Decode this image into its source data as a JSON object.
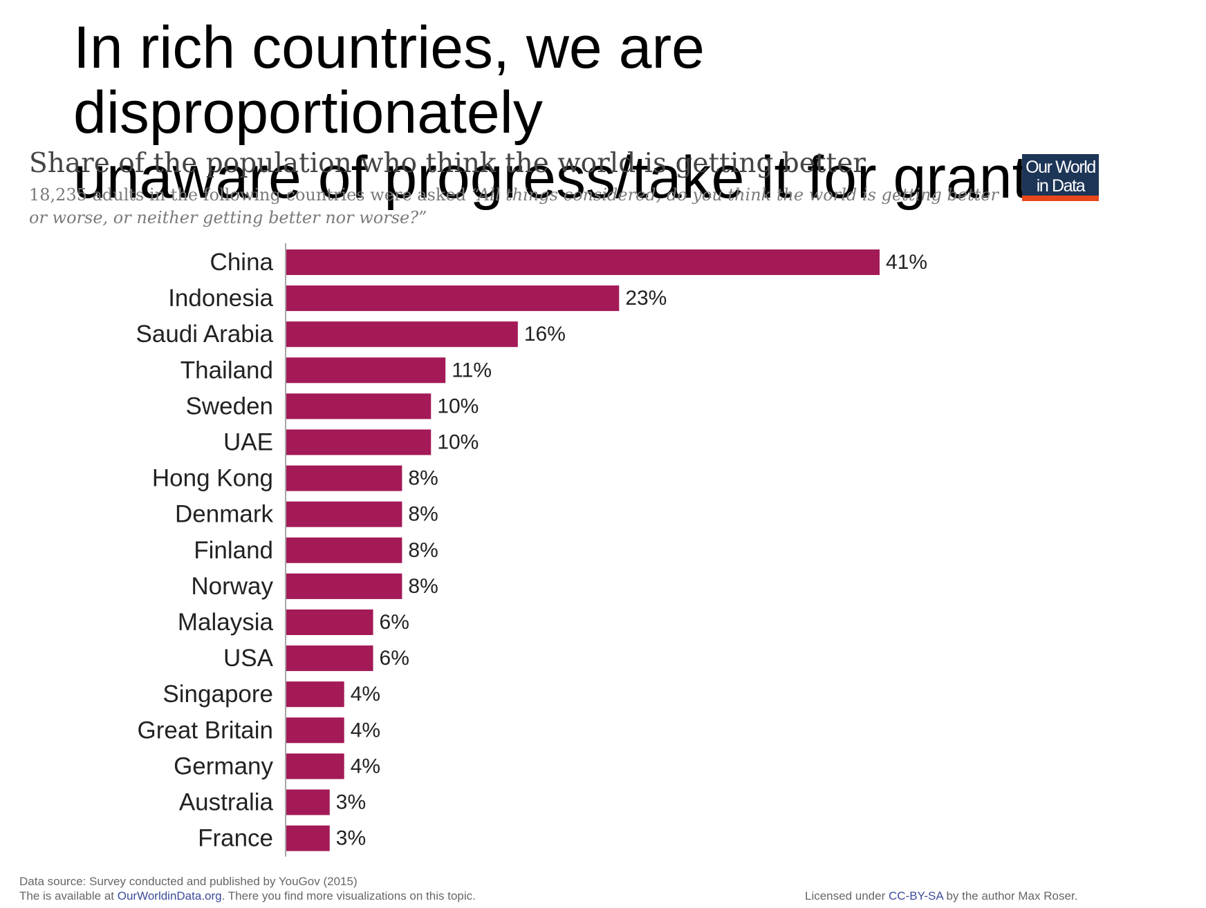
{
  "headline": {
    "line1": "In rich countries, we are disproportionately",
    "line2": "unaware of progress/take it for granted"
  },
  "logo": {
    "line1": "Our World",
    "line2": "in Data"
  },
  "colors": {
    "bar": "#a31a57",
    "logo_bg": "#1d3557",
    "logo_stripe": "#e8471c",
    "link": "#3b4a9a"
  },
  "chart_data": {
    "type": "bar",
    "orientation": "horizontal",
    "title": "Share of the population who think the world is getting better",
    "subtitle_plain": "18,235 adults in the following countries were asked ",
    "subtitle_quote": "“All things considered, do you think the world is getting better or worse, or neither getting better nor worse?”",
    "categories": [
      "China",
      "Indonesia",
      "Saudi Arabia",
      "Thailand",
      "Sweden",
      "UAE",
      "Hong Kong",
      "Denmark",
      "Finland",
      "Norway",
      "Malaysia",
      "USA",
      "Singapore",
      "Great Britain",
      "Germany",
      "Australia",
      "France"
    ],
    "values": [
      41,
      23,
      16,
      11,
      10,
      10,
      8,
      8,
      8,
      8,
      6,
      6,
      4,
      4,
      4,
      3,
      3
    ],
    "value_labels": [
      "41%",
      "23%",
      "16%",
      "11%",
      "10%",
      "10%",
      "8%",
      "8%",
      "8%",
      "8%",
      "6%",
      "6%",
      "4%",
      "4%",
      "4%",
      "3%",
      "3%"
    ],
    "unit": "%",
    "xlim": [
      0,
      41
    ],
    "grid": false,
    "legend": "none"
  },
  "footer": {
    "source": "Data source: Survey conducted and published by YouGov (2015)",
    "available_prefix": "The is available at ",
    "available_link": "OurWorldinData.org",
    "available_suffix": ". There you find more visualizations on this topic.",
    "license_prefix": "Licensed under ",
    "license_link": "CC-BY-SA",
    "license_suffix": " by the author Max Roser."
  }
}
